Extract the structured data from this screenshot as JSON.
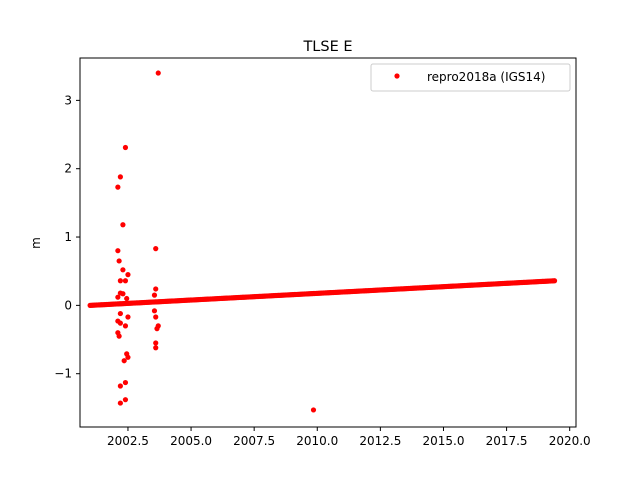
{
  "chart_data": {
    "type": "scatter",
    "title": "TLSE E",
    "xlabel": "",
    "ylabel": "m",
    "xlim": [
      2000.6,
      2020.25
    ],
    "ylim": [
      -1.78,
      3.62
    ],
    "x_ticks": [
      2002.5,
      2005.0,
      2007.5,
      2010.0,
      2012.5,
      2015.0,
      2017.5,
      2020.0
    ],
    "x_tick_labels": [
      "2002.5",
      "2005.0",
      "2007.5",
      "2010.0",
      "2012.5",
      "2015.0",
      "2017.5",
      "2020.0"
    ],
    "y_ticks": [
      -1,
      0,
      1,
      2,
      3
    ],
    "y_tick_labels": [
      "−1",
      "0",
      "1",
      "2",
      "3"
    ],
    "grid": false,
    "legend_position": "top-right",
    "series": [
      {
        "name": "repro2018a (IGS14)",
        "color": "#ff0000",
        "marker": "circle",
        "trend": {
          "x_start": 2001.0,
          "y_start": 0.0,
          "x_end": 2019.4,
          "y_end": 0.36
        },
        "outliers": [
          {
            "x": 2003.7,
            "y": 3.4
          },
          {
            "x": 2002.4,
            "y": 2.31
          },
          {
            "x": 2002.2,
            "y": 1.88
          },
          {
            "x": 2002.1,
            "y": 1.73
          },
          {
            "x": 2002.3,
            "y": 1.18
          },
          {
            "x": 2003.6,
            "y": 0.83
          },
          {
            "x": 2002.1,
            "y": 0.8
          },
          {
            "x": 2002.15,
            "y": 0.65
          },
          {
            "x": 2002.3,
            "y": 0.52
          },
          {
            "x": 2002.5,
            "y": 0.45
          },
          {
            "x": 2002.2,
            "y": 0.36
          },
          {
            "x": 2002.4,
            "y": 0.36
          },
          {
            "x": 2003.6,
            "y": 0.24
          },
          {
            "x": 2002.2,
            "y": 0.18
          },
          {
            "x": 2002.3,
            "y": 0.17
          },
          {
            "x": 2003.55,
            "y": 0.15
          },
          {
            "x": 2002.1,
            "y": 0.12
          },
          {
            "x": 2002.45,
            "y": 0.1
          },
          {
            "x": 2003.55,
            "y": -0.08
          },
          {
            "x": 2002.2,
            "y": -0.12
          },
          {
            "x": 2003.6,
            "y": -0.17
          },
          {
            "x": 2002.5,
            "y": -0.17
          },
          {
            "x": 2002.1,
            "y": -0.23
          },
          {
            "x": 2002.2,
            "y": -0.26
          },
          {
            "x": 2002.4,
            "y": -0.3
          },
          {
            "x": 2003.7,
            "y": -0.3
          },
          {
            "x": 2003.65,
            "y": -0.34
          },
          {
            "x": 2002.1,
            "y": -0.4
          },
          {
            "x": 2002.15,
            "y": -0.45
          },
          {
            "x": 2003.6,
            "y": -0.55
          },
          {
            "x": 2003.6,
            "y": -0.62
          },
          {
            "x": 2002.45,
            "y": -0.71
          },
          {
            "x": 2002.5,
            "y": -0.76
          },
          {
            "x": 2002.35,
            "y": -0.81
          },
          {
            "x": 2002.4,
            "y": -1.13
          },
          {
            "x": 2002.2,
            "y": -1.18
          },
          {
            "x": 2002.4,
            "y": -1.38
          },
          {
            "x": 2002.2,
            "y": -1.43
          },
          {
            "x": 2009.85,
            "y": -1.53
          }
        ]
      }
    ]
  }
}
